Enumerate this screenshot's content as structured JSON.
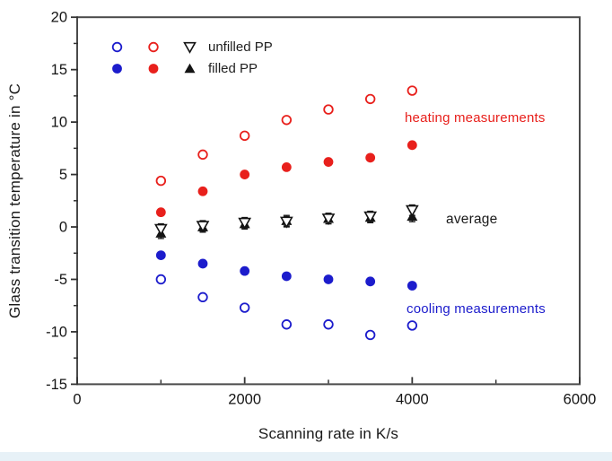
{
  "chart_data": {
    "type": "scatter",
    "title": "",
    "xlabel": "Scanning rate in K/s",
    "ylabel": "Glass transition temperature in °C",
    "xlim": [
      0,
      6000
    ],
    "ylim": [
      -15,
      20
    ],
    "grid": false,
    "axes": {
      "x_major_ticks": [
        0,
        2000,
        4000,
        6000
      ],
      "x_minor_ticks": [
        1000,
        3000,
        5000
      ],
      "y_major_ticks": [
        20,
        15,
        10,
        5,
        0,
        -5,
        -10,
        -15
      ],
      "y_minor_ticks": [
        17.5,
        12.5,
        7.5,
        2.5,
        -2.5,
        -7.5,
        -12.5
      ]
    },
    "x": [
      1000,
      1500,
      2000,
      2500,
      3000,
      3500,
      4000
    ],
    "series": [
      {
        "name": "heating unfilled PP",
        "marker": "circle-open",
        "color": "#e8201c",
        "values": [
          4.4,
          6.9,
          8.7,
          10.2,
          11.2,
          12.2,
          13.0
        ]
      },
      {
        "name": "heating filled PP",
        "marker": "circle-filled",
        "color": "#e8201c",
        "values": [
          1.4,
          3.4,
          5.0,
          5.7,
          6.2,
          6.6,
          7.8
        ]
      },
      {
        "name": "average filled PP",
        "marker": "triangle-up-filled",
        "color": "#141414",
        "values": [
          -0.6,
          0.0,
          0.3,
          0.6,
          0.8,
          0.9,
          1.0
        ],
        "error": 0.5
      },
      {
        "name": "average unfilled PP",
        "marker": "triangle-down-open",
        "color": "#141414",
        "values": [
          -0.2,
          0.1,
          0.4,
          0.5,
          0.8,
          1.0,
          1.6
        ],
        "error": 0.5
      },
      {
        "name": "cooling filled PP",
        "marker": "circle-filled",
        "color": "#1c1ccc",
        "values": [
          -2.7,
          -3.5,
          -4.2,
          -4.7,
          -5.0,
          -5.2,
          -5.6
        ]
      },
      {
        "name": "cooling unfilled PP",
        "marker": "circle-open",
        "color": "#1c1ccc",
        "values": [
          -5.0,
          -6.7,
          -7.7,
          -9.3,
          -9.3,
          -10.3,
          -9.4
        ]
      }
    ],
    "legend": {
      "position": "top-left",
      "rows": [
        {
          "label": "unfilled PP",
          "symbols": [
            "circle-open-blue",
            "circle-open-red",
            "triangle-down-open-black"
          ]
        },
        {
          "label": "filled PP",
          "symbols": [
            "circle-filled-blue",
            "circle-filled-red",
            "triangle-up-filled-black"
          ]
        }
      ]
    },
    "annotations": [
      {
        "id": "heating",
        "text": "heating measurements",
        "color": "#e8201c"
      },
      {
        "id": "average",
        "text": "average",
        "color": "#1a1a1a"
      },
      {
        "id": "cooling",
        "text": "cooling measurements",
        "color": "#1c1ccc"
      }
    ],
    "colors": {
      "heating": "#e8201c",
      "cooling": "#1c1ccc",
      "average": "#141414",
      "spine": "#4a4a4a",
      "tick_label": "#141414",
      "footer_strip": "#e7f1f7"
    }
  }
}
